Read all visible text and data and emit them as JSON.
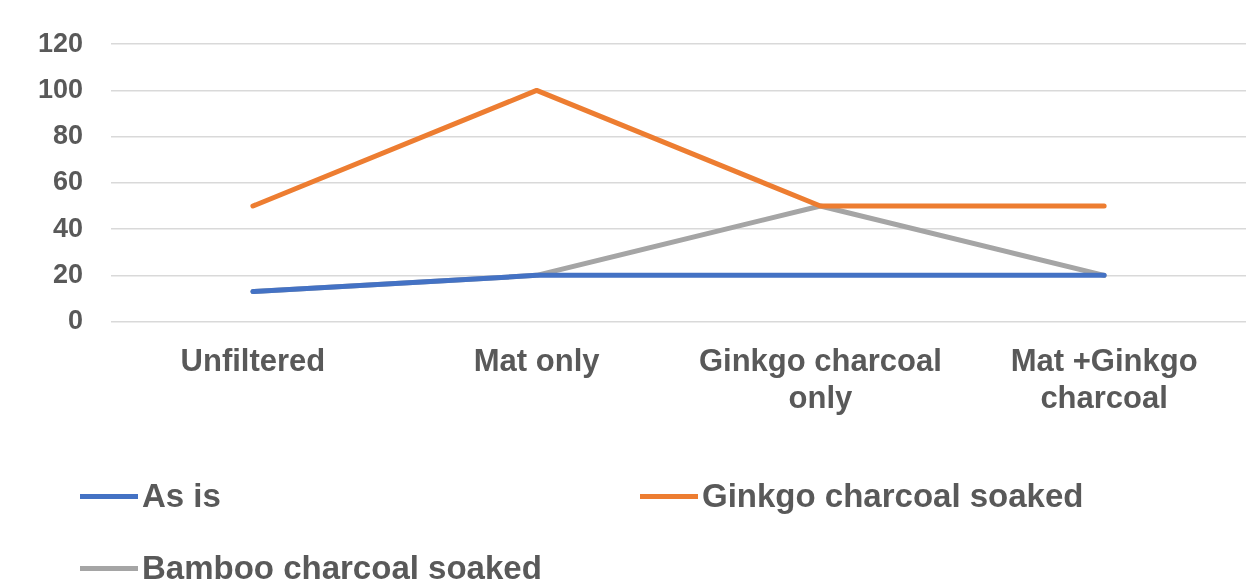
{
  "chart_data": {
    "type": "line",
    "categories": [
      "Unfiltered",
      "Mat only",
      "Ginkgo charcoal only",
      "Mat +Ginkgo charcoal"
    ],
    "series": [
      {
        "name": "As is",
        "color": "#4472c4",
        "values": [
          13,
          20,
          20,
          20
        ]
      },
      {
        "name": "Ginkgo charcoal soaked",
        "color": "#ed7d31",
        "values": [
          50,
          100,
          50,
          50
        ]
      },
      {
        "name": "Bamboo charcoal soaked",
        "color": "#a5a5a5",
        "values": [
          13,
          20,
          50,
          20
        ]
      }
    ],
    "ylim": [
      0,
      120
    ],
    "yticks": [
      0,
      20,
      40,
      60,
      80,
      100,
      120
    ],
    "grid": "y",
    "legend": "bottom",
    "marker": "none",
    "line_style": "solid"
  }
}
